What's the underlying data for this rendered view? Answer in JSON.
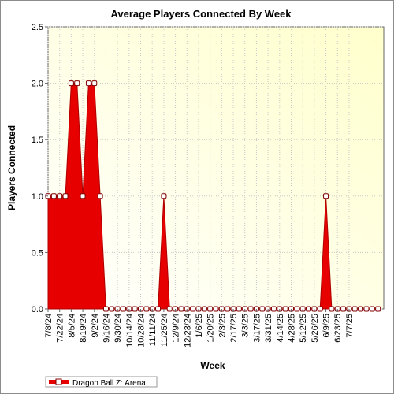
{
  "chart_data": {
    "type": "area",
    "title": "Average Players Connected By Week",
    "xlabel": "Week",
    "ylabel": "Players Connected",
    "ylim": [
      0,
      2.5
    ],
    "y_ticks": [
      "0.0",
      "0.5",
      "1.0",
      "1.5",
      "2.0",
      "2.5"
    ],
    "grid": true,
    "legend_position": "bottom-left",
    "x_tick_labels": [
      "7/8/24",
      "7/22/24",
      "8/5/24",
      "8/19/24",
      "9/2/24",
      "9/16/24",
      "9/30/24",
      "10/14/24",
      "10/28/24",
      "11/11/24",
      "11/25/24",
      "12/9/24",
      "12/23/24",
      "1/6/25",
      "1/20/25",
      "2/3/25",
      "2/17/25",
      "3/3/25",
      "3/17/25",
      "3/31/25",
      "4/14/25",
      "4/28/25",
      "5/12/25",
      "5/26/25",
      "6/9/25",
      "6/23/25",
      "7/7/25"
    ],
    "series": [
      {
        "name": "Dragon Ball Z: Arena",
        "color": "#e60000",
        "values": [
          1,
          1,
          1,
          1,
          2,
          2,
          1,
          2,
          2,
          1,
          0,
          0,
          0,
          0,
          0,
          0,
          0,
          0,
          0,
          0,
          1,
          0,
          0,
          0,
          0,
          0,
          0,
          0,
          0,
          0,
          0,
          0,
          0,
          0,
          0,
          0,
          0,
          0,
          0,
          0,
          0,
          0,
          0,
          0,
          0,
          0,
          0,
          0,
          1,
          0,
          0,
          0,
          0,
          0,
          0,
          0,
          0,
          0
        ]
      }
    ]
  }
}
